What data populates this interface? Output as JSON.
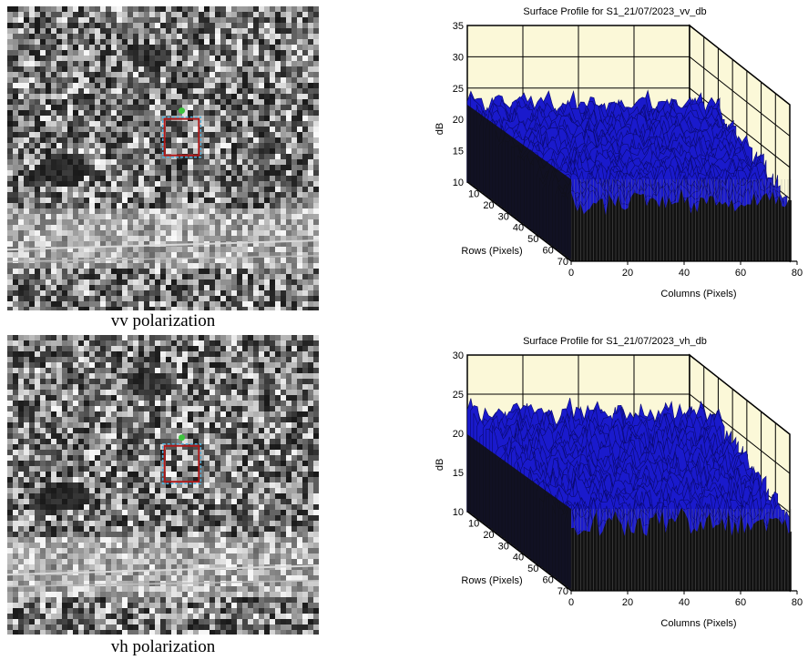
{
  "panels": {
    "vv": {
      "caption": "vv polarization"
    },
    "vh": {
      "caption": "vh polarization"
    }
  },
  "colors": {
    "surface": "#1a1acc",
    "surface_dark": "#0a0a6e",
    "wall": "#111111",
    "wall_line": "#8a8a8a",
    "plot_bg": "#fbf8d8",
    "selection_box": "#b01818",
    "selection_handle": "#3ec43e"
  },
  "chart_data": [
    {
      "type": "surface",
      "title": "Surface Profile for S1_21/07/2023_vv_db",
      "zlabel": "dB",
      "xlabel": "Columns (Pixels)",
      "ylabel": "Rows (Pixels)",
      "zlim": [
        10,
        35
      ],
      "zticks": [
        10,
        15,
        20,
        25,
        30,
        35
      ],
      "xticks": [
        0,
        20,
        40,
        60,
        80
      ],
      "yticks": [
        10,
        20,
        30,
        40,
        50,
        60,
        70
      ],
      "surface_level": {
        "front": 19.5,
        "back": 22.5,
        "range": [
          17,
          25
        ]
      }
    },
    {
      "type": "surface",
      "title": "Surface Profile for S1_21/07/2023_vh_db",
      "zlabel": "dB",
      "xlabel": "Columns (Pixels)",
      "ylabel": "Rows (Pixels)",
      "zlim": [
        10,
        30
      ],
      "zticks": [
        10,
        15,
        20,
        25,
        30
      ],
      "xticks": [
        0,
        20,
        40,
        60,
        80
      ],
      "yticks": [
        10,
        20,
        30,
        40,
        50,
        60,
        70
      ],
      "surface_level": {
        "front": 18.5,
        "back": 22.5,
        "range": [
          17,
          25
        ]
      }
    }
  ]
}
